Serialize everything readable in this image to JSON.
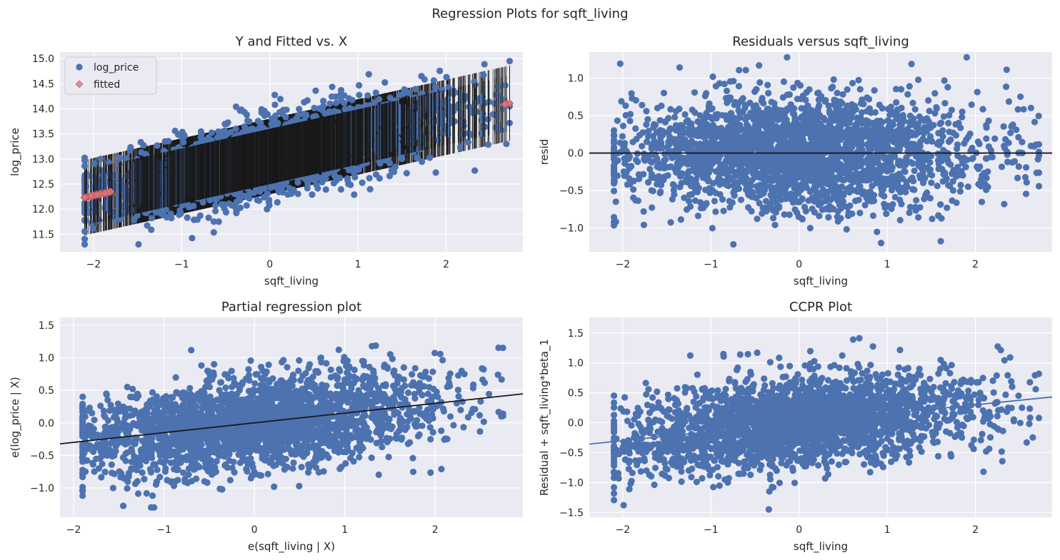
{
  "figure": {
    "suptitle": "Regression Plots for sqft_living"
  },
  "colors": {
    "background": "#eaeaf2",
    "grid": "#ffffff",
    "points": "#4c72b0",
    "fitted": "#dd8452",
    "fitted_marker": "#d9787a",
    "errorbars": "#1a1a1a",
    "line": "#1a1a1a"
  },
  "chart_data": [
    {
      "id": "y-fitted",
      "type": "scatter",
      "title": "Y and Fitted vs. X",
      "xlabel": "sqft_living",
      "ylabel": "log_price",
      "xlim": [
        -2.38,
        2.87
      ],
      "ylim": [
        11.15,
        15.13
      ],
      "xticks": [
        -2,
        -1,
        0,
        1,
        2
      ],
      "yticks": [
        11.5,
        12.0,
        12.5,
        13.0,
        13.5,
        14.0,
        14.5,
        15.0
      ],
      "xdomain": [
        -2.1,
        2.72
      ],
      "fit": {
        "intercept": 13.05,
        "slope": 0.39
      },
      "spread": 0.38,
      "extent": {
        "x": [
          -2.1,
          2.72
        ],
        "y": [
          11.3,
          14.95
        ]
      },
      "legend": {
        "position": "upper-left",
        "entries": [
          "log_price",
          "fitted"
        ]
      },
      "series": [
        {
          "name": "log_price",
          "marker": "circle",
          "color": "#4c72b0"
        },
        {
          "name": "fitted",
          "marker": "diamond",
          "color": "#d9787a"
        }
      ]
    },
    {
      "id": "residuals",
      "type": "scatter",
      "title": "Residuals versus sqft_living",
      "xlabel": "sqft_living",
      "ylabel": "resid",
      "xlim": [
        -2.38,
        2.87
      ],
      "ylim": [
        -1.32,
        1.35
      ],
      "xticks": [
        -2,
        -1,
        0,
        1,
        2
      ],
      "yticks": [
        -1.0,
        -0.5,
        0.0,
        0.5,
        1.0
      ],
      "xdomain": [
        -2.1,
        2.72
      ],
      "fit": {
        "intercept": 0.0,
        "slope": 0.0
      },
      "spread": 0.38,
      "extent": {
        "x": [
          -2.1,
          2.72
        ],
        "y": [
          -1.22,
          1.28
        ]
      },
      "reference_line": {
        "y": 0.0
      },
      "series": [
        {
          "name": "resid",
          "marker": "circle",
          "color": "#4c72b0"
        }
      ]
    },
    {
      "id": "partial",
      "type": "scatter",
      "title": "Partial regression plot",
      "xlabel": "e(sqft_living | X)",
      "ylabel": "e(log_price | X)",
      "xlim": [
        -2.15,
        2.97
      ],
      "ylim": [
        -1.45,
        1.62
      ],
      "xticks": [
        -2,
        -1,
        0,
        1,
        2
      ],
      "yticks": [
        -1.0,
        -0.5,
        0.0,
        0.5,
        1.0,
        1.5
      ],
      "xdomain": [
        -1.9,
        2.75
      ],
      "fit": {
        "intercept": 0.0,
        "slope": 0.15
      },
      "spread": 0.36,
      "extent": {
        "x": [
          -1.9,
          2.75
        ],
        "y": [
          -1.3,
          1.5
        ]
      },
      "series": [
        {
          "name": "e(log_price | X)",
          "marker": "circle",
          "color": "#4c72b0"
        }
      ]
    },
    {
      "id": "ccpr",
      "type": "scatter",
      "title": "CCPR Plot",
      "xlabel": "sqft_living",
      "ylabel": "Residual + sqft_living*beta_1",
      "xlim": [
        -2.38,
        2.87
      ],
      "ylim": [
        -1.58,
        1.76
      ],
      "xticks": [
        -2,
        -1,
        0,
        1,
        2
      ],
      "yticks": [
        -1.5,
        -1.0,
        -0.5,
        0.0,
        0.5,
        1.0,
        1.5
      ],
      "xdomain": [
        -2.1,
        2.72
      ],
      "fit": {
        "intercept": 0.0,
        "slope": 0.15
      },
      "spread": 0.38,
      "extent": {
        "x": [
          -2.1,
          2.72
        ],
        "y": [
          -1.45,
          1.62
        ]
      },
      "series": [
        {
          "name": "Residual + sqft_living*beta_1",
          "marker": "circle",
          "color": "#4c72b0"
        }
      ]
    }
  ]
}
